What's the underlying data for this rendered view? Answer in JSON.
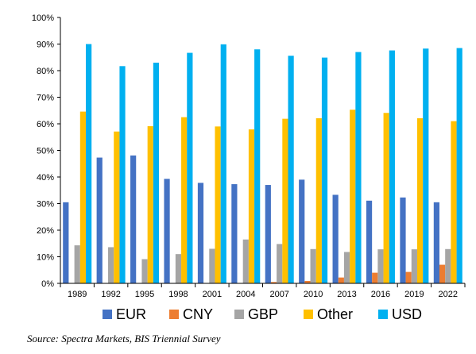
{
  "chart_data": {
    "type": "bar",
    "categories": [
      "1989",
      "1992",
      "1995",
      "1998",
      "2001",
      "2004",
      "2007",
      "2010",
      "2013",
      "2016",
      "2019",
      "2022"
    ],
    "series": [
      {
        "name": "EUR",
        "color": "#4472C4",
        "values": [
          30.5,
          47.3,
          48.1,
          39.3,
          37.8,
          37.3,
          37.0,
          39.0,
          33.3,
          31.1,
          32.3,
          30.5
        ]
      },
      {
        "name": "CNY",
        "color": "#ED7D31",
        "values": [
          0,
          0,
          0,
          0,
          0,
          0.1,
          0.5,
          0.9,
          2.2,
          4.0,
          4.3,
          7.0
        ]
      },
      {
        "name": "GBP",
        "color": "#A5A5A5",
        "values": [
          14.3,
          13.6,
          9.1,
          11.0,
          13.0,
          16.5,
          14.8,
          12.9,
          11.8,
          12.8,
          12.8,
          12.9
        ]
      },
      {
        "name": "Other",
        "color": "#FFC000",
        "values": [
          64.6,
          57.1,
          59.1,
          62.5,
          59.0,
          57.9,
          61.9,
          62.1,
          65.3,
          64.1,
          62.1,
          61.0
        ]
      },
      {
        "name": "USD",
        "color": "#00B0F0",
        "values": [
          90.0,
          81.7,
          83.0,
          86.7,
          89.9,
          88.0,
          85.6,
          84.9,
          87.0,
          87.6,
          88.3,
          88.5
        ]
      }
    ],
    "yticks": [
      "0%",
      "10%",
      "20%",
      "30%",
      "40%",
      "50%",
      "60%",
      "70%",
      "80%",
      "90%",
      "100%"
    ],
    "ylim": [
      0,
      100
    ],
    "title": "",
    "xlabel": "",
    "ylabel": "",
    "grid": false,
    "legend": "bottom"
  },
  "source": "Source: Spectra Markets, BIS Triennial Survey"
}
